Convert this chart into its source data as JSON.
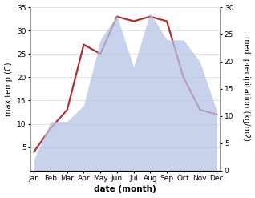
{
  "months": [
    "Jan",
    "Feb",
    "Mar",
    "Apr",
    "May",
    "Jun",
    "Jul",
    "Aug",
    "Sep",
    "Oct",
    "Nov",
    "Dec"
  ],
  "temp_C": [
    4.0,
    9.0,
    13.0,
    27.0,
    25.0,
    33.0,
    32.0,
    33.0,
    32.0,
    20.0,
    13.0,
    12.0
  ],
  "precip_mm": [
    2.0,
    9.0,
    9.0,
    12.0,
    24.0,
    28.5,
    19.0,
    29.0,
    24.0,
    24.0,
    20.0,
    11.0
  ],
  "temp_ylim": [
    0,
    35
  ],
  "temp_yticks": [
    5,
    10,
    15,
    20,
    25,
    30,
    35
  ],
  "precip_ylim": [
    0,
    30
  ],
  "precip_yticks": [
    0,
    5,
    10,
    15,
    20,
    25,
    30
  ],
  "fill_color": "#b8c4e8",
  "fill_alpha": 0.75,
  "line_color": "#b03030",
  "line_width": 1.6,
  "xlabel": "date (month)",
  "ylabel_left": "max temp (C)",
  "ylabel_right": "med. precipitation (kg/m2)",
  "bg_color": "#ffffff",
  "xlabel_fontsize": 7.5,
  "ylabel_fontsize": 7,
  "tick_fontsize": 6.5,
  "grid_color": "#dddddd",
  "spine_color": "#999999"
}
